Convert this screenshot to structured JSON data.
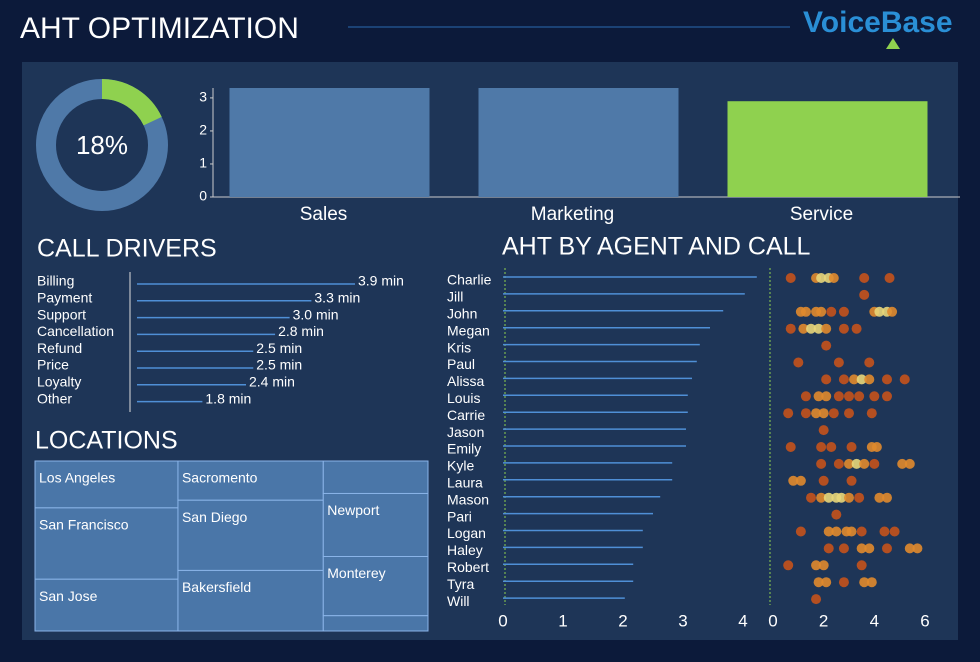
{
  "title": "AHT OPTIMIZATION",
  "logo": "VoiceBase",
  "chart_data": [
    {
      "type": "donut",
      "value": 18,
      "value_label": "18%",
      "color": "#8fd14f",
      "track_color": "#4f79a8"
    },
    {
      "type": "bar",
      "categories": [
        "Sales",
        "Marketing",
        "Service"
      ],
      "values": [
        3.3,
        3.3,
        2.9
      ],
      "colors": [
        "#4f79a8",
        "#4f79a8",
        "#8fd14f"
      ],
      "ylim": [
        0,
        3.3
      ],
      "yticks": [
        0,
        1,
        2,
        3
      ]
    },
    {
      "type": "hbar",
      "title": "CALL DRIVERS",
      "categories": [
        "Billing",
        "Payment",
        "Support",
        "Cancellation",
        "Refund",
        "Price",
        "Loyalty",
        "Other"
      ],
      "values": [
        3.9,
        3.3,
        3.0,
        2.8,
        2.5,
        2.5,
        2.4,
        1.8
      ],
      "value_labels": [
        "3.9 min",
        "3.3 min",
        "3.0 min",
        "2.8 min",
        "2.5 min",
        "2.5 min",
        "2.4 min",
        "1.8 min"
      ],
      "xlim": [
        0.9,
        3.9
      ],
      "color": "#4f8fd6"
    },
    {
      "type": "treemap",
      "title": "LOCATIONS",
      "categories": [
        "Los Angeles",
        "San Francisco",
        "San Jose",
        "Sacromento",
        "San Diego",
        "Bakersfield",
        null,
        "Newport",
        "Monterey",
        null
      ],
      "values": [
        6.7,
        10.2,
        7.4,
        5.7,
        10.2,
        8.8,
        3.4,
        6.6,
        6.2,
        1.6
      ],
      "color": "#4a76a8"
    },
    {
      "type": "hbar-axis",
      "title": "AHT BY AGENT AND CALL",
      "categories": [
        "Charlie",
        "Jill",
        "John",
        "Megan",
        "Kris",
        "Paul",
        "Alissa",
        "Louis",
        "Carrie",
        "Jason",
        "Emily",
        "Kyle",
        "Laura",
        "Mason",
        "Pari",
        "Logan",
        "Haley",
        "Robert",
        "Tyra",
        "Will"
      ],
      "values": [
        4.23,
        4.03,
        3.67,
        3.45,
        3.28,
        3.23,
        3.15,
        3.08,
        3.08,
        3.05,
        3.05,
        2.82,
        2.82,
        2.62,
        2.5,
        2.33,
        2.33,
        2.17,
        2.17,
        2.03
      ],
      "xlim": [
        0,
        4.3
      ],
      "xticks": [
        0,
        1,
        2,
        3,
        4
      ],
      "color": "#4f8fd6"
    },
    {
      "type": "strip",
      "values": [
        [
          0.7,
          1.7,
          1.9,
          2.2,
          2.4,
          3.6,
          4.6
        ],
        [
          3.6
        ],
        [
          1.1,
          1.3,
          1.7,
          1.9,
          2.3,
          2.8,
          4.0,
          4.2,
          4.5,
          4.7
        ],
        [
          0.7,
          1.2,
          1.5,
          1.8,
          2.1,
          2.8,
          3.3
        ],
        [
          2.1
        ],
        [
          1.0,
          2.6,
          3.8
        ],
        [
          2.1,
          2.8,
          3.2,
          3.5,
          3.8,
          4.5,
          5.2
        ],
        [
          1.3,
          1.8,
          2.1,
          2.6,
          3.0,
          3.4,
          4.0,
          4.5
        ],
        [
          0.6,
          1.3,
          1.7,
          2.0,
          2.4,
          3.0,
          3.9
        ],
        [
          2.0
        ],
        [
          0.7,
          1.9,
          2.3,
          3.1,
          3.9,
          4.1
        ],
        [
          1.9,
          2.6,
          3.0,
          3.3,
          3.6,
          4.0,
          5.1,
          5.4
        ],
        [
          0.8,
          1.1,
          2.0,
          3.1
        ],
        [
          1.5,
          1.9,
          2.2,
          2.5,
          2.7,
          3.0,
          3.4,
          4.2,
          4.5
        ],
        [
          2.5
        ],
        [
          1.1,
          2.2,
          2.5,
          2.9,
          3.1,
          3.5,
          4.4,
          4.8
        ],
        [
          2.2,
          2.8,
          3.5,
          3.8,
          4.5,
          5.4,
          5.7
        ],
        [
          0.6,
          1.7,
          2.0,
          3.5
        ],
        [
          1.8,
          2.1,
          2.8,
          3.6,
          3.9
        ],
        [
          1.7
        ]
      ],
      "xlim": [
        0,
        6
      ],
      "xticks": [
        0,
        2,
        4,
        6
      ],
      "colors": [
        "#c4521c",
        "#e08a2e",
        "#e8d67a"
      ]
    }
  ]
}
